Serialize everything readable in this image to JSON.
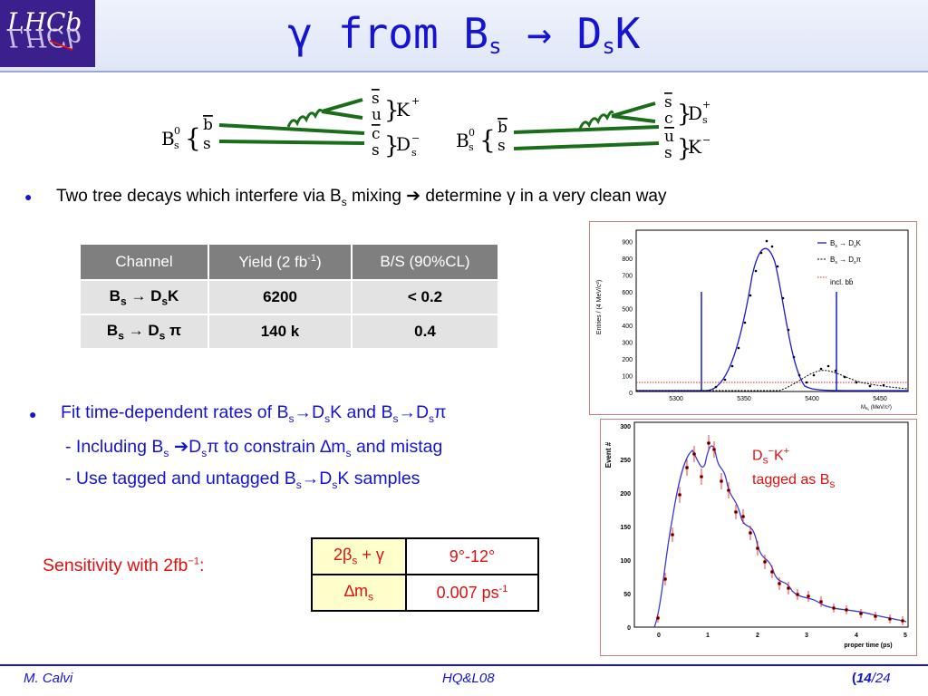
{
  "title": {
    "main": "γ from B",
    "sub1": "s",
    "arrow": " → D",
    "sub2": "s",
    "tail": "K"
  },
  "diagrams": {
    "left": {
      "meson": "B",
      "meson_sup": "0",
      "meson_sub": "s",
      "q_top": "b",
      "q_bot": "s",
      "out_top": [
        "s",
        "u"
      ],
      "out_top_label": "K",
      "out_top_sup": "+",
      "out_bot": [
        "c",
        "s"
      ],
      "out_bot_label": "D",
      "out_bot_sup": "−",
      "out_bot_sub": "s"
    },
    "right": {
      "meson": "B",
      "meson_sup": "0",
      "meson_sub": "s",
      "q_top": "b",
      "q_bot": "s",
      "out_top": [
        "s",
        "c"
      ],
      "out_top_label": "D",
      "out_top_sup": "+",
      "out_top_sub": "s",
      "out_bot": [
        "u",
        "s"
      ],
      "out_bot_label": "K",
      "out_bot_sup": "−"
    }
  },
  "bullet1": {
    "pre": "Two tree decays  which interfere via B",
    "sub": "s",
    "mid": " mixing ",
    "arrow": "➔",
    "post": " determine ",
    "gamma": "γ",
    "end": " in a very clean way"
  },
  "table": {
    "headers": [
      "Channel",
      "Yield (2 fb",
      "-1",
      ")",
      "B/S (90%CL)"
    ],
    "rows": [
      {
        "ch_a": "B",
        "ch_a_sub": "s",
        "ch_arrow": " → D",
        "ch_b_sub": "s",
        "ch_tail": "K",
        "yield": "6200",
        "bs": "< 0.2"
      },
      {
        "ch_a": "B",
        "ch_a_sub": "s",
        "ch_arrow": " → D",
        "ch_b_sub": "s",
        "ch_tail": " π",
        "yield": "140 k",
        "bs": "0.4"
      }
    ]
  },
  "bullet2": {
    "pre": "Fit time-dependent rates of B",
    "s1": "s",
    "a1": "→D",
    "s2": "s",
    "k": "K  and B",
    "s3": "s",
    "a2": "→D",
    "s4": "s",
    "pi": "π"
  },
  "sub1": {
    "pre": "- Including B",
    "s1": "s",
    "arrow": " ➔D",
    "s2": "s",
    "pi": "π",
    "mid": " to constrain ",
    "dm": "∆m",
    "s3": "s",
    "end": " and mistag"
  },
  "sub2": {
    "pre": "- Use tagged and untagged B",
    "s1": "s",
    "a1": "→D",
    "s2": "s",
    "end": "K  samples"
  },
  "sensitivity": {
    "label": "Sensitivity with 2fb",
    "label_sup": "−1",
    "colon": ":",
    "rows": [
      {
        "q_pre": "2β",
        "q_sub": "s",
        "q_post": " + γ",
        "value": "9°-12°"
      },
      {
        "q_pre": "∆m",
        "q_sub": "s",
        "q_post": "",
        "value": "0.007 ps",
        "value_sup": "-1"
      }
    ]
  },
  "plot1": {
    "ylabel": "Entries / (4 MeV/c²)",
    "xlabel": "M",
    "xlabel_sub": "B",
    "xlabel_sub2": "s",
    "xlabel_unit": " (MeV/c²)",
    "yticks": [
      "0",
      "100",
      "200",
      "300",
      "400",
      "500",
      "600",
      "700",
      "800",
      "900"
    ],
    "xticks": [
      "5300",
      "5350",
      "5400",
      "5450"
    ],
    "legend": [
      "B",
      "s",
      " → D",
      "s",
      "K",
      "B",
      "s",
      " → D",
      "s",
      "π",
      "incl. bb̄"
    ]
  },
  "plot2": {
    "ylabel": "Event #",
    "xlabel": "proper time (ps)",
    "yticks": [
      "0",
      "50",
      "100",
      "150",
      "200",
      "250",
      "300"
    ],
    "xticks": [
      "0",
      "1",
      "2",
      "3",
      "4",
      "5"
    ]
  },
  "note": {
    "a": "D",
    "a_sub": "s",
    "a_sup": "−",
    "b": "K",
    "b_sup": "+",
    "line2": "tagged as B",
    "line2_sub": "s"
  },
  "footer": {
    "author": "M. Calvi",
    "conf": "HQ&L08",
    "page_open": "(",
    "page": "14",
    "total": "/24"
  },
  "colors": {
    "title": "#1414d2",
    "red": "#e01010",
    "header_gray": "#7f7f7f",
    "cell_gray": "#e3e3e3",
    "sens_yellow": "#ffffcc",
    "feyn_green": "#1a6e1a",
    "logo_purple": "#3b1f8c"
  }
}
